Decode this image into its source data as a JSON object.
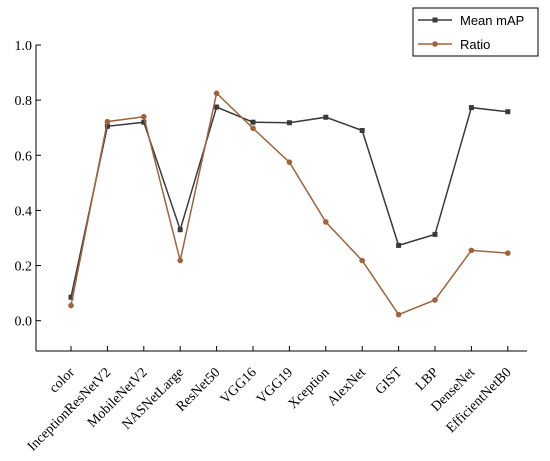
{
  "chart_data": {
    "type": "line",
    "categories": [
      "color",
      "InceptionResNetV2",
      "MobileNetV2",
      "NASNetLarge",
      "ResNet50",
      "VGG16",
      "VGG19",
      "Xception",
      "AlexNet",
      "GIST",
      "LBP",
      "DenseNet",
      "EfficientNetB0"
    ],
    "series": [
      {
        "name": "Mean mAP",
        "color": "#3a3a3a",
        "marker": "square",
        "values": [
          0.085,
          0.705,
          0.72,
          0.33,
          0.775,
          0.72,
          0.718,
          0.738,
          0.69,
          0.273,
          0.313,
          0.773,
          0.758
        ]
      },
      {
        "name": "Ratio",
        "color": "#a0643c",
        "marker": "circle",
        "values": [
          0.055,
          0.722,
          0.74,
          0.218,
          0.825,
          0.698,
          0.575,
          0.358,
          0.218,
          0.022,
          0.075,
          0.255,
          0.245
        ]
      }
    ],
    "yticks": [
      "0.0",
      "0.2",
      "0.4",
      "0.6",
      "0.8",
      "1.0"
    ],
    "ylim": [
      -0.11,
      1.0
    ],
    "legend": "top-right",
    "grid": false
  }
}
